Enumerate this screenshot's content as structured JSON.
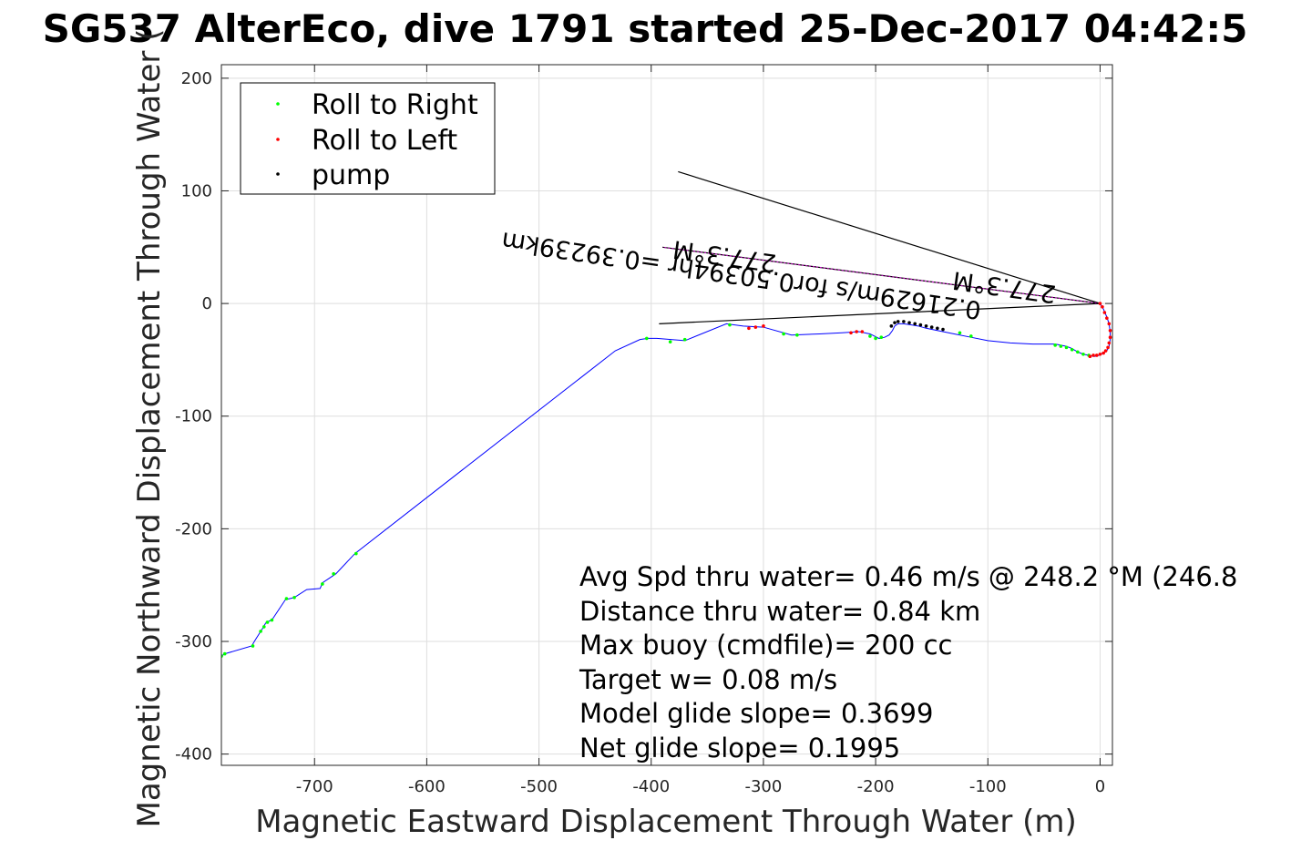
{
  "chart_data": {
    "type": "scatter",
    "title": "SG537 AlterEco, dive 1791 started 25-Dec-2017 04:42:5",
    "xlabel": "Magnetic Eastward Displacement Through Water (m)",
    "ylabel": "Magnetic Northward Displacement Through Water (",
    "xlim": [
      -783,
      11
    ],
    "ylim": [
      -410,
      212
    ],
    "xticks": [
      -700,
      -600,
      -500,
      -400,
      -300,
      -200,
      -100,
      0
    ],
    "yticks": [
      -400,
      -300,
      -200,
      -100,
      0,
      100,
      200
    ],
    "grid": true,
    "legend_position": "top-left",
    "legend": [
      "Roll to Right",
      "Roll to Left",
      "pump"
    ],
    "colors": {
      "track": "#0000ff",
      "roll_right": "#00ff00",
      "roll_left": "#ff0000",
      "pump": "#000000",
      "current_line": "#cc00cc",
      "vector": "#000000"
    },
    "series": [
      {
        "name": "",
        "kind": "line",
        "x": [
          0,
          3,
          6,
          8,
          9,
          9,
          8,
          6,
          3,
          -1,
          -5,
          -10,
          -15,
          -20,
          -25,
          -30,
          -35,
          -40,
          -50,
          -60,
          -80,
          -100,
          -115,
          -130,
          -145,
          -155,
          -162,
          -168,
          -175,
          -180,
          -183,
          -185,
          -188,
          -192,
          -197,
          -205,
          -215,
          -230,
          -250,
          -275,
          -300,
          -318,
          -333,
          -370,
          -395,
          -403,
          -410,
          -432,
          -664,
          -681,
          -693,
          -695,
          -707,
          -718,
          -726,
          -738,
          -743,
          -745,
          -746,
          -753,
          -756,
          -780,
          -783
        ],
        "y": [
          0,
          -5,
          -12,
          -18,
          -25,
          -32,
          -38,
          -42,
          -44,
          -46,
          -47,
          -46,
          -45,
          -43,
          -40,
          -38,
          -37,
          -36,
          -36,
          -36,
          -35,
          -33,
          -30,
          -27,
          -24,
          -22,
          -20,
          -19,
          -18,
          -18,
          -20,
          -24,
          -28,
          -30,
          -31,
          -27,
          -25,
          -26,
          -27,
          -28,
          -21,
          -20,
          -18,
          -33,
          -31,
          -31,
          -32,
          -42,
          -222,
          -240,
          -248,
          -253,
          -254,
          -261,
          -263,
          -281,
          -283,
          -286,
          -288,
          -299,
          -304,
          -311,
          -313
        ]
      },
      {
        "name": "Roll to Right",
        "kind": "points",
        "x": [
          -10,
          -15,
          -20,
          -25,
          -30,
          -35,
          -40,
          -115,
          -125,
          -195,
          -200,
          -205,
          -270,
          -282,
          -330,
          -370,
          -383,
          -404,
          -663,
          -683,
          -693,
          -718,
          -725,
          -738,
          -742,
          -745,
          -748,
          -755,
          -780,
          -783
        ],
        "y": [
          -46,
          -45,
          -43,
          -41,
          -39,
          -38,
          -37,
          -29,
          -26,
          -30,
          -31,
          -29,
          -28,
          -27,
          -19,
          -32,
          -34,
          -31,
          -222,
          -240,
          -249,
          -261,
          -262,
          -281,
          -283,
          -287,
          -291,
          -304,
          -311,
          -313
        ]
      },
      {
        "name": "Roll to Left",
        "kind": "points",
        "x": [
          0,
          2,
          4,
          6,
          8,
          9,
          9,
          8,
          7,
          5,
          3,
          0,
          -3,
          -6,
          -9,
          -212,
          -217,
          -222,
          -300,
          -307,
          -313
        ],
        "y": [
          0,
          -3,
          -8,
          -13,
          -18,
          -24,
          -30,
          -35,
          -39,
          -42,
          -44,
          -45,
          -46,
          -46,
          -47,
          -25,
          -25,
          -26,
          -20,
          -21,
          -22
        ]
      },
      {
        "name": "pump",
        "kind": "points",
        "x": [
          -140,
          -145,
          -150,
          -155,
          -160,
          -165,
          -170,
          -175,
          -180,
          -183,
          -186
        ],
        "y": [
          -23,
          -22,
          -21,
          -20,
          -19,
          -18,
          -17,
          -16,
          -16,
          -17,
          -20
        ]
      }
    ],
    "vectors": [
      {
        "x": [
          0,
          -376
        ],
        "y": [
          0,
          117
        ]
      },
      {
        "x": [
          0,
          -393
        ],
        "y": [
          0,
          -18
        ]
      },
      {
        "x": [
          0,
          -390
        ],
        "y": [
          0,
          50
        ]
      }
    ],
    "vector_labels": [
      "277.3°M",
      "0.21629m/s for0.50394hr =0.39239km",
      "277.3°M"
    ],
    "annotations": [
      "Avg Spd thru water=  0.46 m/s @ 248.2 °M (246.8",
      "Distance thru water=  0.84 km",
      "Max buoy (cmdfile)= 200 cc",
      "Target w= 0.08 m/s",
      "Model glide slope= 0.3699",
      "Net glide slope= 0.1995"
    ]
  }
}
